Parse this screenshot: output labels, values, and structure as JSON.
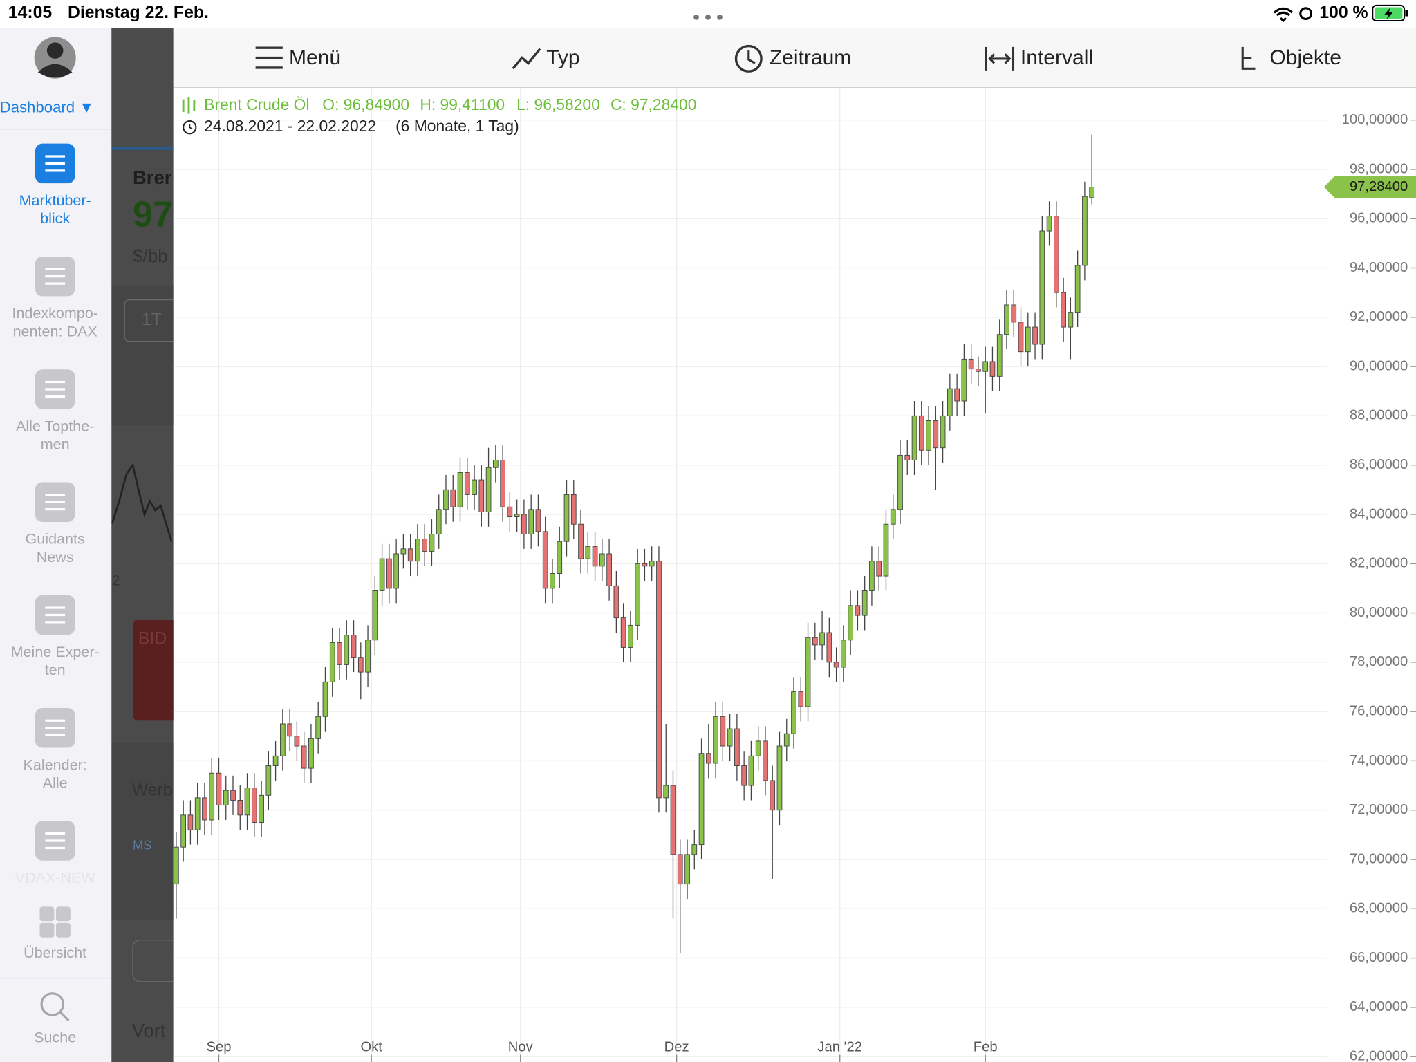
{
  "status_bar": {
    "time": "14:05",
    "date": "Dienstag 22. Feb.",
    "battery": "100 %"
  },
  "sidebar": {
    "dashboard": "Dashboard ▼",
    "items": [
      {
        "lines": [
          "Marktüber-",
          "blick"
        ]
      },
      {
        "lines": [
          "Indexkompo-",
          "nenten: DAX"
        ]
      },
      {
        "lines": [
          "Alle Topthe-",
          "men"
        ]
      },
      {
        "lines": [
          "Guidants",
          "News"
        ]
      },
      {
        "lines": [
          "Meine Exper-",
          "ten"
        ]
      },
      {
        "lines": [
          "Kalender:",
          "Alle"
        ]
      },
      {
        "lines": [
          "VDAX-NEW"
        ]
      },
      {
        "lines": [
          "Übersicht"
        ]
      }
    ],
    "search": "Suche"
  },
  "background": [
    "Brer",
    "97",
    "$/bb",
    "1T",
    "2",
    "BID",
    "Werb",
    "MS",
    "Vort"
  ],
  "toolbar": [
    "Menü",
    "Typ",
    "Zeitraum",
    "Intervall",
    "Objekte"
  ],
  "chart_data": {
    "type": "candlestick",
    "title": "Brent Crude Öl",
    "ohlc_labels": [
      "O: 96,84900",
      "H: 99,41100",
      "L: 96,58200",
      "C: 97,28400"
    ],
    "range": "24.08.2021 - 22.02.2022",
    "period": "(6 Monate, 1 Tag)",
    "last_label": "97,28400",
    "up_color": "#8bc34a",
    "down_color": "#e57373",
    "title_color": "#6cbf3a",
    "grid": true,
    "open": [
      69.0,
      70.5,
      71.8,
      71.2,
      72.5,
      71.6,
      73.5,
      72.2,
      72.8,
      72.4,
      71.8,
      72.9,
      71.5,
      72.6,
      73.8,
      74.2,
      75.5,
      75.0,
      74.6,
      73.7,
      74.9,
      75.8,
      77.2,
      78.8,
      77.9,
      79.1,
      78.2,
      77.6,
      78.9,
      80.9,
      82.2,
      81.0,
      82.4,
      82.6,
      82.1,
      83.0,
      82.5,
      83.2,
      84.2,
      85.0,
      84.3,
      85.7,
      84.8,
      85.4,
      84.1,
      85.9,
      86.2,
      84.3,
      83.9,
      84.0,
      83.2,
      84.2,
      83.3,
      81.0,
      81.6,
      82.9,
      84.8,
      83.6,
      82.2,
      82.7,
      81.9,
      82.4,
      81.1,
      79.8,
      78.6,
      79.5,
      82.0,
      81.9,
      82.1,
      72.5,
      73.0,
      70.2,
      69.0,
      70.2,
      70.6,
      74.3,
      73.9,
      75.8,
      74.6,
      75.3,
      73.8,
      73.0,
      74.2,
      74.8,
      73.2,
      72.0,
      74.6,
      75.1,
      76.8,
      76.2,
      79.0,
      78.7,
      79.2,
      78.0,
      77.8,
      78.9,
      80.3,
      79.9,
      80.9,
      82.1,
      81.5,
      83.6,
      84.2,
      86.4,
      86.2,
      88.0,
      86.6,
      87.8,
      86.7,
      88.0,
      89.1,
      88.6,
      90.3,
      89.9,
      89.8,
      90.2,
      89.6,
      91.3,
      92.5,
      91.8,
      90.6,
      91.6,
      90.9,
      95.5,
      96.1,
      93.0,
      91.6,
      92.2,
      94.1,
      96.849
    ],
    "high": [
      71.1,
      72.4,
      72.4,
      73.1,
      73.1,
      74.1,
      74.1,
      73.4,
      73.4,
      73.0,
      73.5,
      73.5,
      73.2,
      74.4,
      74.8,
      76.1,
      76.1,
      75.6,
      75.2,
      75.5,
      76.4,
      77.8,
      79.4,
      79.4,
      79.7,
      79.7,
      78.8,
      79.5,
      81.5,
      82.8,
      82.8,
      83.0,
      83.2,
      83.2,
      83.6,
      83.6,
      83.8,
      84.8,
      85.6,
      85.6,
      86.3,
      86.3,
      86.0,
      86.0,
      86.7,
      86.8,
      86.8,
      84.9,
      84.6,
      84.6,
      84.8,
      84.8,
      83.9,
      82.2,
      83.5,
      85.4,
      85.4,
      84.2,
      83.3,
      83.3,
      83.0,
      83.0,
      81.7,
      80.4,
      80.1,
      82.6,
      82.6,
      82.7,
      82.7,
      75.5,
      73.6,
      70.8,
      70.8,
      71.2,
      74.9,
      75.5,
      76.4,
      76.4,
      75.9,
      75.9,
      74.4,
      74.8,
      75.4,
      75.4,
      73.8,
      75.2,
      75.7,
      77.4,
      77.4,
      79.6,
      79.6,
      80.1,
      79.8,
      78.6,
      79.5,
      80.9,
      80.9,
      81.5,
      82.7,
      82.7,
      84.2,
      84.8,
      87.0,
      87.0,
      88.6,
      88.6,
      88.4,
      88.4,
      88.6,
      89.7,
      89.7,
      90.9,
      90.9,
      90.4,
      90.8,
      90.8,
      91.9,
      93.1,
      93.1,
      92.4,
      92.2,
      92.2,
      96.1,
      96.7,
      96.7,
      93.6,
      92.8,
      94.7,
      97.5,
      99.411
    ],
    "low": [
      67.6,
      69.9,
      70.6,
      70.6,
      71.0,
      71.0,
      71.6,
      71.6,
      71.8,
      71.2,
      71.2,
      70.9,
      70.9,
      72.0,
      73.2,
      73.6,
      74.4,
      74.0,
      73.1,
      73.1,
      74.3,
      75.2,
      76.6,
      77.3,
      77.3,
      77.6,
      76.5,
      77.0,
      78.3,
      80.3,
      80.4,
      80.4,
      81.8,
      81.5,
      81.5,
      81.9,
      81.9,
      82.6,
      83.6,
      83.7,
      83.7,
      84.2,
      84.2,
      83.5,
      83.5,
      85.3,
      83.7,
      83.3,
      83.3,
      82.6,
      82.6,
      82.7,
      80.4,
      80.4,
      81.0,
      82.3,
      83.0,
      81.6,
      81.6,
      81.3,
      81.3,
      80.5,
      79.2,
      78.0,
      78.0,
      78.9,
      81.3,
      81.3,
      71.9,
      71.9,
      67.6,
      66.2,
      68.4,
      69.6,
      70.0,
      73.3,
      73.3,
      74.0,
      74.0,
      73.2,
      72.4,
      72.4,
      73.6,
      72.6,
      69.2,
      71.4,
      74.0,
      74.5,
      75.6,
      75.6,
      78.1,
      78.1,
      77.4,
      77.2,
      77.2,
      78.3,
      79.3,
      79.3,
      80.3,
      80.9,
      80.9,
      83.0,
      83.6,
      85.6,
      85.6,
      86.0,
      86.0,
      85.0,
      86.1,
      87.4,
      88.0,
      88.0,
      89.3,
      89.2,
      88.1,
      89.0,
      89.0,
      90.7,
      91.2,
      90.0,
      90.0,
      90.3,
      90.3,
      94.9,
      92.4,
      91.0,
      90.3,
      91.6,
      93.5,
      96.582
    ],
    "close": [
      70.5,
      71.8,
      71.2,
      72.5,
      71.6,
      73.5,
      72.2,
      72.8,
      72.4,
      71.8,
      72.9,
      71.5,
      72.6,
      73.8,
      74.2,
      75.5,
      75.0,
      74.6,
      73.7,
      74.9,
      75.8,
      77.2,
      78.8,
      77.9,
      79.1,
      78.2,
      77.6,
      78.9,
      80.9,
      82.2,
      81.0,
      82.4,
      82.6,
      82.1,
      83.0,
      82.5,
      83.2,
      84.2,
      85.0,
      84.3,
      85.7,
      84.8,
      85.4,
      84.1,
      85.9,
      86.2,
      84.3,
      83.9,
      84.0,
      83.2,
      84.2,
      83.3,
      81.0,
      81.6,
      82.9,
      84.8,
      83.6,
      82.2,
      82.7,
      81.9,
      82.4,
      81.1,
      79.8,
      78.6,
      79.5,
      82.0,
      81.9,
      82.1,
      72.5,
      73.0,
      70.2,
      69.0,
      70.2,
      70.6,
      74.3,
      73.9,
      75.8,
      74.6,
      75.3,
      73.8,
      73.0,
      74.2,
      74.8,
      73.2,
      72.0,
      74.6,
      75.1,
      76.8,
      76.2,
      79.0,
      78.7,
      79.2,
      78.0,
      77.8,
      78.9,
      80.3,
      79.9,
      80.9,
      82.1,
      81.5,
      83.6,
      84.2,
      86.4,
      86.2,
      88.0,
      86.6,
      87.8,
      86.7,
      88.0,
      89.1,
      88.6,
      90.3,
      89.9,
      89.8,
      90.2,
      89.6,
      91.3,
      92.5,
      91.8,
      90.6,
      91.6,
      90.9,
      95.5,
      96.1,
      93.0,
      91.6,
      92.2,
      94.1,
      96.9,
      97.284
    ],
    "xlim": [
      -0.4,
      162.2
    ],
    "xticks": [
      {
        "value": 6,
        "label": "Sep"
      },
      {
        "value": 27.5,
        "label": "Okt"
      },
      {
        "value": 48.5,
        "label": "Nov"
      },
      {
        "value": 70.5,
        "label": "Dez"
      },
      {
        "value": 93.5,
        "label": "Jan '22"
      },
      {
        "value": 114,
        "label": "Feb"
      }
    ],
    "ylim": [
      61.78,
      101.28
    ],
    "yticks": [
      {
        "value": 62,
        "label": "62,00000"
      },
      {
        "value": 64,
        "label": "64,00000"
      },
      {
        "value": 66,
        "label": "66,00000"
      },
      {
        "value": 68,
        "label": "68,00000"
      },
      {
        "value": 70,
        "label": "70,00000"
      },
      {
        "value": 72,
        "label": "72,00000"
      },
      {
        "value": 74,
        "label": "74,00000"
      },
      {
        "value": 76,
        "label": "76,00000"
      },
      {
        "value": 78,
        "label": "78,00000"
      },
      {
        "value": 80,
        "label": "80,00000"
      },
      {
        "value": 82,
        "label": "82,00000"
      },
      {
        "value": 84,
        "label": "84,00000"
      },
      {
        "value": 86,
        "label": "86,00000"
      },
      {
        "value": 88,
        "label": "88,00000"
      },
      {
        "value": 90,
        "label": "90,00000"
      },
      {
        "value": 92,
        "label": "92,00000"
      },
      {
        "value": 94,
        "label": "94,00000"
      },
      {
        "value": 96,
        "label": "96,00000"
      },
      {
        "value": 98,
        "label": "98,00000"
      },
      {
        "value": 100,
        "label": "100,00000"
      }
    ]
  }
}
